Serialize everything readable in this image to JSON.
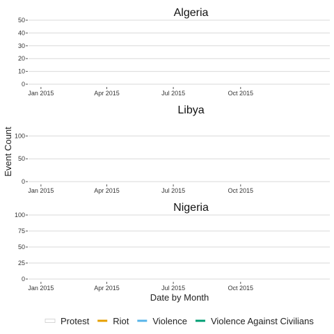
{
  "chart_data": {
    "type": "line",
    "ylabel": "Event Count",
    "xlabel": "Date by Month",
    "x_ticks": [
      "Jan 2015",
      "Apr 2015",
      "Jul 2015",
      "Oct 2015"
    ],
    "x_tick_dates": [
      "2015-01-01",
      "2015-04-01",
      "2015-07-01",
      "2015-10-01"
    ],
    "xlim": [
      "2014-12-15",
      "2016-01-31"
    ],
    "grid": true,
    "legend_position": "bottom",
    "series": [
      {
        "name": "Protest",
        "color": "#ffffff"
      },
      {
        "name": "Riot",
        "color": "#e69f00"
      },
      {
        "name": "Violence",
        "color": "#56b4e9"
      },
      {
        "name": "Violence Against Civilians",
        "color": "#009e73"
      }
    ],
    "panels": [
      {
        "title": "Algeria",
        "ylim": [
          0,
          50
        ],
        "y_ticks": [
          0,
          10,
          20,
          30,
          40,
          50
        ],
        "data": []
      },
      {
        "title": "Libya",
        "ylim": [
          0,
          125
        ],
        "y_ticks": [
          0,
          50,
          100
        ],
        "data": []
      },
      {
        "title": "Nigeria",
        "ylim": [
          0,
          100
        ],
        "y_ticks": [
          0,
          25,
          50,
          75,
          100
        ],
        "data": []
      }
    ]
  }
}
